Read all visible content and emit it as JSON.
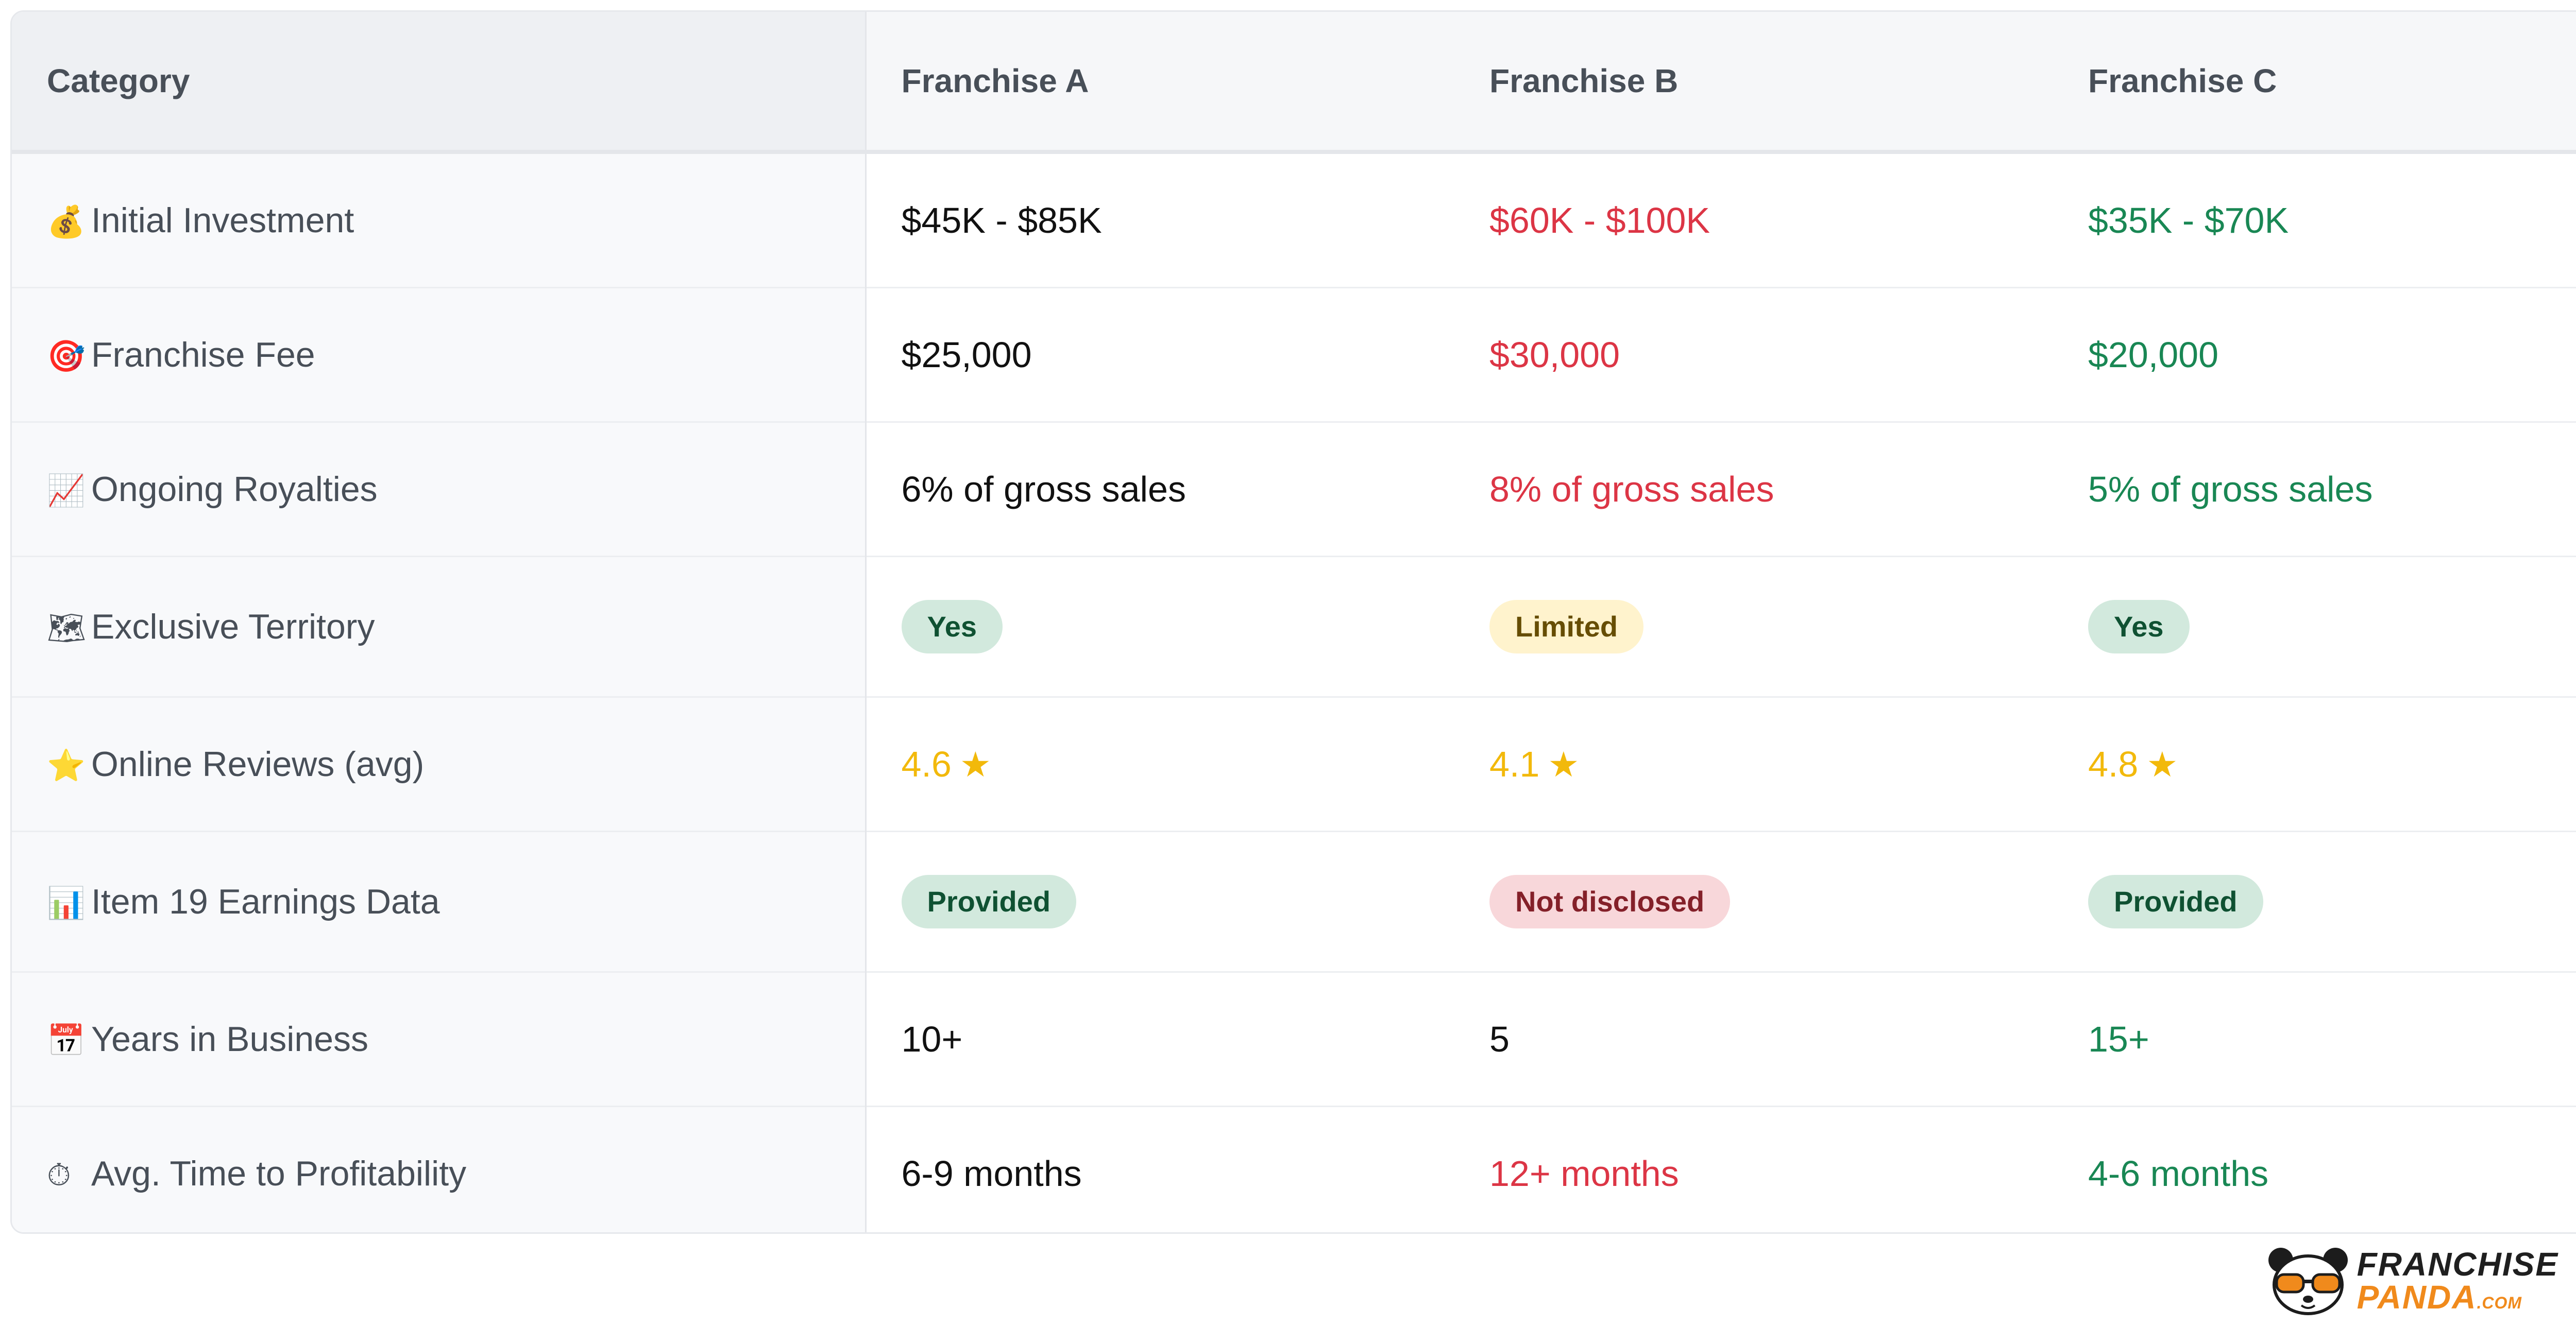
{
  "table": {
    "headers": [
      "Category",
      "Franchise A",
      "Franchise B",
      "Franchise C"
    ],
    "rows": [
      {
        "emoji": "💰",
        "category": "Initial Investment",
        "a": "$45K - $85K",
        "b": "$60K - $100K",
        "c": "$35K - $70K"
      },
      {
        "emoji": "🎯",
        "category": "Franchise Fee",
        "a": "$25,000",
        "b": "$30,000",
        "c": "$20,000"
      },
      {
        "emoji": "📈",
        "category": "Ongoing Royalties",
        "a": "6% of gross sales",
        "b": "8% of gross sales",
        "c": "5% of gross sales"
      },
      {
        "emoji": "🗺",
        "category": "Exclusive Territory",
        "a": "Yes",
        "b": "Limited",
        "c": "Yes"
      },
      {
        "emoji": "⭐",
        "category": "Online Reviews (avg)",
        "a": "4.6",
        "b": "4.1",
        "c": "4.8"
      },
      {
        "emoji": "📊",
        "category": "Item 19 Earnings Data",
        "a": "Provided",
        "b": "Not disclosed",
        "c": "Provided"
      },
      {
        "emoji": "📅",
        "category": "Years in Business",
        "a": "10+",
        "b": "5",
        "c": "15+"
      },
      {
        "emoji": "⏱",
        "category": "Avg. Time to Profitability",
        "a": "6-9 months",
        "b": "12+ months",
        "c": "4-6 months"
      }
    ],
    "star_glyph": "★"
  },
  "colors": {
    "worse": "#dc3545",
    "better": "#198754",
    "rating": "#f2b90b",
    "badge_positive_bg": "#d2e9dd",
    "badge_limited_bg": "#fff3cd",
    "badge_negative_bg": "#f8d7da"
  },
  "brand": {
    "line1": "FRANCHISE",
    "line2": "PANDA",
    "suffix": ".COM",
    "logo_icon": "panda-with-sunglasses-icon"
  }
}
